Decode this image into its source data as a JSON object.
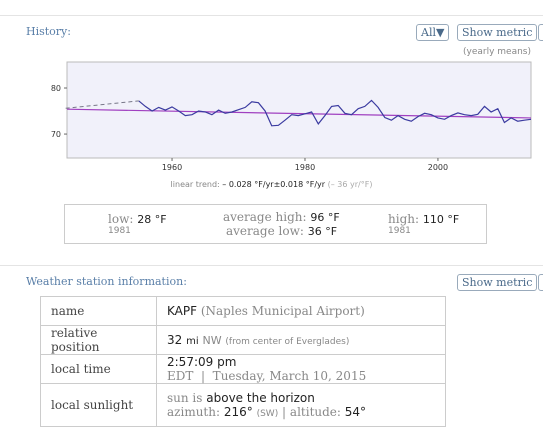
{
  "history": {
    "label": "History:",
    "buttons": [
      "All▼",
      "Show metric"
    ],
    "note": "(yearly means)",
    "trend_text": {
      "label": "linear trend:",
      "value": "– 0.028 °F/yr±0.018 °F/yr",
      "extra": "(– 36 yr/°F)"
    },
    "stats": {
      "low": {
        "label": "low:",
        "value": "28 °F",
        "year": "1981"
      },
      "avg_high": {
        "label": "average high:",
        "value": "96 °F"
      },
      "avg_low": {
        "label": "average low:",
        "value": "36 °F"
      },
      "high": {
        "label": "high:",
        "value": "110 °F",
        "year": "1981"
      }
    }
  },
  "chart_data": {
    "type": "line",
    "color": "#3b3ba0",
    "trend_color": "#a040c0",
    "x": [
      1944,
      1955,
      1956,
      1957,
      1958,
      1959,
      1960,
      1961,
      1962,
      1963,
      1964,
      1965,
      1966,
      1967,
      1968,
      1969,
      1970,
      1971,
      1972,
      1973,
      1974,
      1975,
      1976,
      1977,
      1978,
      1979,
      1980,
      1981,
      1982,
      1983,
      1984,
      1985,
      1986,
      1987,
      1988,
      1989,
      1990,
      1991,
      1992,
      1993,
      1994,
      1995,
      1996,
      1997,
      1998,
      1999,
      2000,
      2001,
      2002,
      2003,
      2004,
      2005,
      2006,
      2007,
      2008,
      2009,
      2010,
      2011,
      2012,
      2013,
      2014
    ],
    "values": [
      75.6,
      77.2,
      76.0,
      75.0,
      75.8,
      75.2,
      75.9,
      75.0,
      74.0,
      74.2,
      75.0,
      74.8,
      74.2,
      75.2,
      74.5,
      74.8,
      75.3,
      75.8,
      77.0,
      76.8,
      75.0,
      71.8,
      71.9,
      73.0,
      74.2,
      74.0,
      74.4,
      74.8,
      72.2,
      74.0,
      76.0,
      76.2,
      74.5,
      74.2,
      75.5,
      76.0,
      77.3,
      75.8,
      73.6,
      73.0,
      74.0,
      73.2,
      72.8,
      73.8,
      74.5,
      74.2,
      73.5,
      73.2,
      74.0,
      74.6,
      74.2,
      74.0,
      74.3,
      76.0,
      74.8,
      75.5,
      72.5,
      73.5,
      72.8,
      73.0,
      73.2
    ],
    "trend": [
      75.4,
      73.5
    ],
    "xlim": [
      1944.2,
      2014
    ],
    "ylim": [
      64.8,
      85.65
    ],
    "xticks": [
      1960,
      1980,
      2000
    ],
    "yticks": [
      70,
      80
    ]
  },
  "station": {
    "label": "Weather station information:",
    "button": "Show metric",
    "rows": [
      {
        "key": "name",
        "main": "KAPF",
        "extra": "(Naples Municipal Airport)"
      },
      {
        "key": "relative position",
        "main": "32",
        "unit": "mi",
        "dir": "NW",
        "extra": "(from center of Everglades)"
      },
      {
        "key": "local time",
        "main": "2:57:09 pm",
        "extra": "EDT  |  Tuesday, March 10, 2015"
      },
      {
        "key": "local sunlight",
        "pre": "sun is",
        "main": "above the horizon",
        "az_label": "azimuth:",
        "az": "216°",
        "az_dir": "(SW)",
        "sep": "|",
        "alt_label": "altitude:",
        "alt": "54°"
      }
    ]
  }
}
